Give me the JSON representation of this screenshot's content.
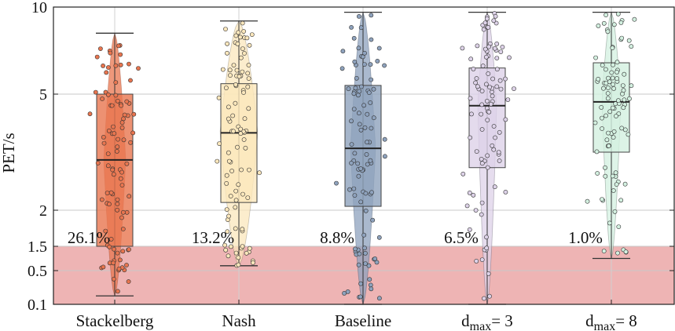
{
  "chart_data": {
    "type": "box-violin-strip",
    "title": "",
    "xlabel": "",
    "ylabel": "PET/s",
    "y_scale": "piecewise",
    "ylim": [
      0.1,
      10
    ],
    "y_ticks": [
      {
        "value": 0.1,
        "label": "0.1"
      },
      {
        "value": 0.5,
        "label": "0.5"
      },
      {
        "value": 1.5,
        "label": "1.5"
      },
      {
        "value": 2,
        "label": "2"
      },
      {
        "value": 5,
        "label": "5"
      },
      {
        "value": 10,
        "label": "10"
      }
    ],
    "grid": true,
    "danger_zone": {
      "from": 0.1,
      "to": 1.5,
      "color": "#eeb4b4"
    },
    "categories": [
      {
        "name": "Stackelberg",
        "sub": "",
        "suffix": "",
        "color": "#e8754f",
        "stroke": "#8a3b25",
        "stats": {
          "min": 0.2,
          "q1": 1.5,
          "median": 3.3,
          "q3": 5.0,
          "max": 8.5
        },
        "percent_below": "26.1%"
      },
      {
        "name": "Nash",
        "sub": "",
        "suffix": "",
        "color": "#fbe7bc",
        "stroke": "#6b6250",
        "stats": {
          "min": 0.7,
          "q1": 2.2,
          "median": 4.0,
          "q3": 5.6,
          "max": 9.2
        },
        "percent_below": "13.2%"
      },
      {
        "name": "Baseline",
        "sub": "",
        "suffix": "",
        "color": "#8ea2bd",
        "stroke": "#2e3c52",
        "stats": {
          "min": 0.1,
          "q1": 2.1,
          "median": 3.6,
          "q3": 5.5,
          "max": 9.7
        },
        "percent_below": "8.8%"
      },
      {
        "name": "d",
        "sub": "max",
        "suffix": "= 3",
        "color": "#ddd2e8",
        "stroke": "#4b4459",
        "stats": {
          "min": 0.1,
          "q1": 3.1,
          "median": 4.7,
          "q3": 6.5,
          "max": 9.7
        },
        "percent_below": "6.5%"
      },
      {
        "name": "d",
        "sub": "max",
        "suffix": "= 8",
        "color": "#d3f0e0",
        "stroke": "#3b4f44",
        "stats": {
          "min": 1.0,
          "q1": 3.5,
          "median": 4.8,
          "q3": 6.8,
          "max": 9.7
        },
        "percent_below": "1.0%"
      }
    ]
  }
}
